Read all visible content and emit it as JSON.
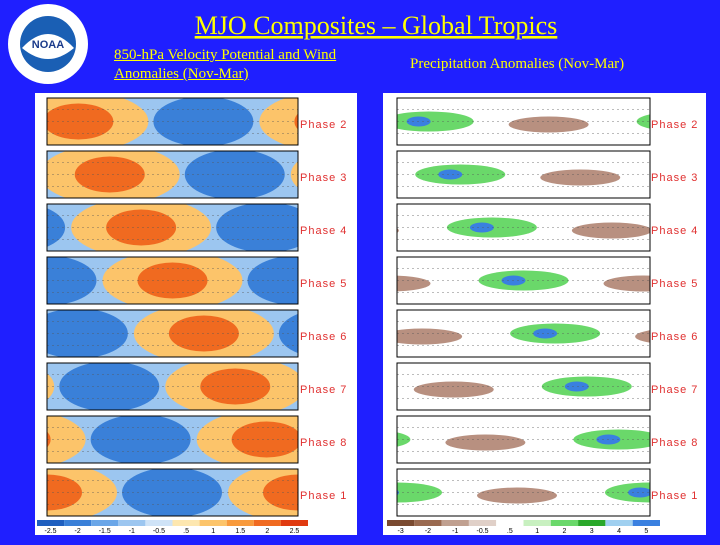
{
  "header": {
    "title": "MJO Composites – Global Tropics"
  },
  "left": {
    "subtitle": "850-hPa Velocity Potential and Wind Anomalies (Nov-Mar)",
    "phases": [
      "Phase 2",
      "Phase 3",
      "Phase 4",
      "Phase 5",
      "Phase 6",
      "Phase 7",
      "Phase 8",
      "Phase 1"
    ],
    "colorbar": [
      "-2.5",
      "-2",
      "-1.5",
      "-1",
      "-0.5",
      ".5",
      "1",
      "1.5",
      "2",
      "2.5"
    ]
  },
  "right": {
    "subtitle": "Precipitation Anomalies (Nov-Mar)",
    "phases": [
      "Phase 2",
      "Phase 3",
      "Phase 4",
      "Phase 5",
      "Phase 6",
      "Phase 7",
      "Phase 8",
      "Phase 1"
    ],
    "colorbar": [
      "-3",
      "-2",
      "-1",
      "-0.5",
      ".5",
      "1",
      "2",
      "3",
      "4",
      "5"
    ]
  }
}
